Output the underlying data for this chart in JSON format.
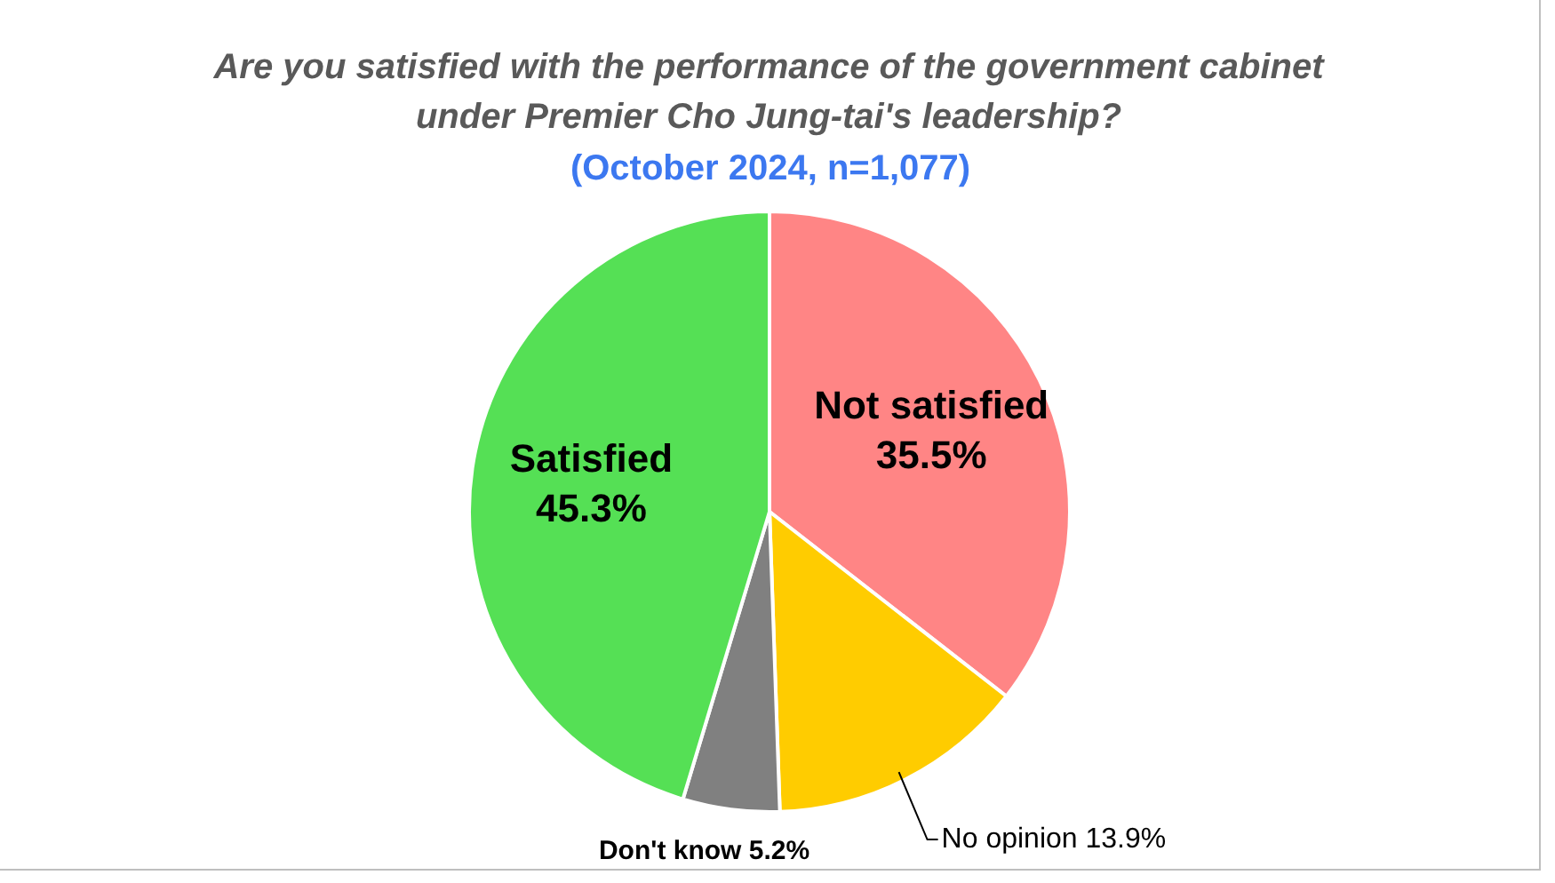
{
  "chart_data": {
    "type": "pie",
    "title": "Are you satisfied with the performance of the government cabinet under Premier Cho Jung-tai's leadership?",
    "subtitle": "(October 2024, n=1,077)",
    "categories": [
      "Not satisfied",
      "No opinion",
      "Don't know",
      "Satisfied"
    ],
    "values": [
      35.5,
      13.9,
      5.2,
      45.3
    ],
    "colors": [
      "#ff8585",
      "#ffcc00",
      "#808080",
      "#55e055"
    ],
    "value_labels": [
      "35.5%",
      "13.9%",
      "5.2%",
      "45.3%"
    ],
    "legend": false
  }
}
